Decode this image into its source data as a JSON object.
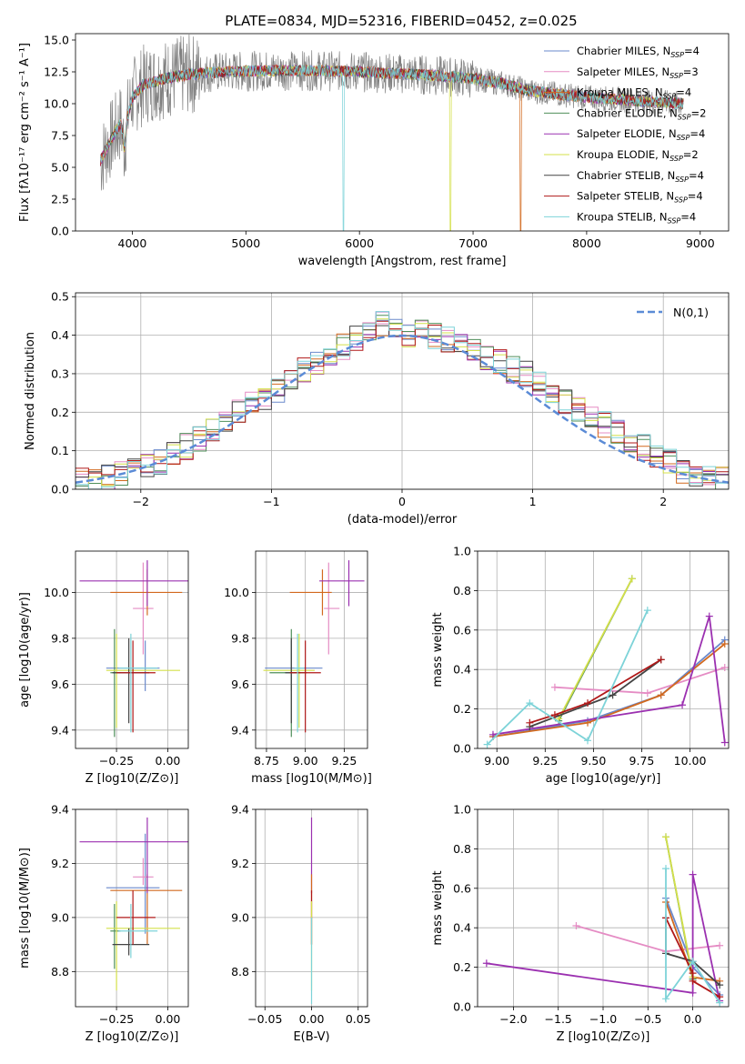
{
  "figure": {
    "title": "PLATE=0834, MJD=52316, FIBERID=0452, z=0.025"
  },
  "colors": {
    "Chabrier MILES": "#6a89cc",
    "Salpeter MILES": "#e58cc4",
    "Kroupa MILES": "#d2691e",
    "Chabrier ELODIE": "#4f8f5a",
    "Salpeter ELODIE": "#9b30b0",
    "Kroupa ELODIE": "#d4e04a",
    "Chabrier STELIB": "#444444",
    "Salpeter STELIB": "#b01818",
    "Kroupa STELIB": "#7dd3d8",
    "data": "#808080",
    "normal": "#5b8bd6"
  },
  "chart_data": [
    {
      "id": "spectrum",
      "type": "line",
      "xlabel": "wavelength [Angstrom, rest frame]",
      "ylabel": "Flux [fλ10⁻¹⁷ erg cm⁻² s⁻¹ A⁻¹]",
      "xlim": [
        3500,
        9250
      ],
      "ylim": [
        0,
        15.5
      ],
      "xticks": [
        4000,
        5000,
        6000,
        7000,
        8000,
        9000
      ],
      "yticks": [
        0.0,
        2.5,
        5.0,
        7.5,
        10.0,
        12.5,
        15.0
      ],
      "grid": false,
      "legend_position": "top-right",
      "legend": [
        "Chabrier MILES, N_SSP=4",
        "Salpeter MILES, N_SSP=3",
        "Kroupa MILES, N_SSP=4",
        "Chabrier ELODIE, N_SSP=2",
        "Salpeter ELODIE, N_SSP=4",
        "Kroupa ELODIE, N_SSP=2",
        "Chabrier STELIB, N_SSP=4",
        "Salpeter STELIB, N_SSP=4",
        "Kroupa STELIB, N_SSP=4"
      ],
      "continuum": {
        "wavelength": [
          3720,
          3800,
          3900,
          3930,
          3960,
          4000,
          4100,
          4300,
          4500,
          4800,
          5200,
          5600,
          6000,
          6500,
          7000,
          7300,
          7500,
          8000,
          8500,
          8850
        ],
        "flux": [
          5.5,
          7.0,
          8.5,
          6.5,
          9.0,
          10.5,
          11.5,
          12.0,
          12.3,
          12.5,
          12.6,
          12.6,
          12.5,
          12.3,
          12.0,
          11.5,
          11.0,
          10.5,
          10.2,
          10.0
        ]
      },
      "model_dropouts": [
        {
          "model": "Kroupa STELIB",
          "x": 5860
        },
        {
          "model": "Kroupa ELODIE",
          "x": 6800
        },
        {
          "model": "Kroupa MILES",
          "x": 7420
        }
      ]
    },
    {
      "id": "residuals",
      "type": "step",
      "xlabel": "(data-model)/error",
      "ylabel": "Normed distribution",
      "xlim": [
        -2.5,
        2.5
      ],
      "ylim": [
        0,
        0.51
      ],
      "xticks": [
        -2,
        -1,
        0,
        1,
        2
      ],
      "yticks": [
        0.0,
        0.1,
        0.2,
        0.3,
        0.4,
        0.5
      ],
      "grid": true,
      "legend_position": "top-right",
      "legend": [
        "N(0,1)"
      ],
      "bin_edges": [
        -2.5,
        -2.4,
        -2.3,
        -2.2,
        -2.1,
        -2.0,
        -1.9,
        -1.8,
        -1.7,
        -1.6,
        -1.5,
        -1.4,
        -1.3,
        -1.2,
        -1.1,
        -1.0,
        -0.9,
        -0.8,
        -0.7,
        -0.6,
        -0.5,
        -0.4,
        -0.3,
        -0.2,
        -0.1,
        0.0,
        0.1,
        0.2,
        0.3,
        0.4,
        0.5,
        0.6,
        0.7,
        0.8,
        0.9,
        1.0,
        1.1,
        1.2,
        1.3,
        1.4,
        1.5,
        1.6,
        1.7,
        1.8,
        1.9,
        2.0,
        2.1,
        2.2,
        2.3,
        2.4,
        2.5
      ],
      "density_approx": [
        0.02,
        0.02,
        0.03,
        0.04,
        0.05,
        0.06,
        0.07,
        0.09,
        0.11,
        0.13,
        0.15,
        0.17,
        0.2,
        0.22,
        0.24,
        0.26,
        0.28,
        0.31,
        0.33,
        0.35,
        0.37,
        0.39,
        0.4,
        0.43,
        0.42,
        0.4,
        0.41,
        0.4,
        0.39,
        0.38,
        0.36,
        0.34,
        0.33,
        0.31,
        0.3,
        0.28,
        0.26,
        0.23,
        0.21,
        0.19,
        0.17,
        0.15,
        0.13,
        0.11,
        0.09,
        0.07,
        0.05,
        0.04,
        0.03,
        0.03
      ],
      "normal_curve": {
        "mu": 0,
        "sigma": 1
      }
    },
    {
      "id": "age_vs_Z",
      "type": "errorbar",
      "xlabel": "Z [log10(Z/Z⊙)]",
      "ylabel": "age [log10(age/yr)]",
      "xlim": [
        -0.45,
        0.1
      ],
      "ylim": [
        9.32,
        10.18
      ],
      "xticks": [
        -0.25,
        0.0
      ],
      "yticks": [
        9.4,
        9.6,
        9.8,
        10.0
      ],
      "grid": true,
      "points": [
        {
          "model": "Chabrier MILES",
          "x": -0.11,
          "y": 9.67,
          "xerr": [
            0.19,
            0.07
          ],
          "yerr": [
            0.1,
            0.12
          ]
        },
        {
          "model": "Salpeter MILES",
          "x": -0.12,
          "y": 9.93,
          "xerr": [
            0.05,
            0.05
          ],
          "yerr": [
            0.2,
            0.2
          ]
        },
        {
          "model": "Kroupa MILES",
          "x": -0.1,
          "y": 10.0,
          "xerr": [
            0.18,
            0.17
          ],
          "yerr": [
            0.1,
            0.1
          ]
        },
        {
          "model": "Chabrier ELODIE",
          "x": -0.26,
          "y": 9.65,
          "xerr": [
            0.02,
            0.03
          ],
          "yerr": [
            0.28,
            0.19
          ]
        },
        {
          "model": "Salpeter ELODIE",
          "x": -0.1,
          "y": 10.05,
          "xerr": [
            0.33,
            0.2
          ],
          "yerr": [
            0.11,
            0.09
          ]
        },
        {
          "model": "Kroupa ELODIE",
          "x": -0.25,
          "y": 9.66,
          "xerr": [
            0.05,
            0.31
          ],
          "yerr": [
            0.25,
            0.16
          ]
        },
        {
          "model": "Chabrier STELIB",
          "x": -0.19,
          "y": 9.65,
          "xerr": [
            0.08,
            0.1
          ],
          "yerr": [
            0.22,
            0.15
          ]
        },
        {
          "model": "Salpeter STELIB",
          "x": -0.17,
          "y": 9.65,
          "xerr": [
            0.08,
            0.11
          ],
          "yerr": [
            0.26,
            0.14
          ]
        },
        {
          "model": "Kroupa STELIB",
          "x": -0.18,
          "y": 9.67,
          "xerr": [
            0.06,
            0.13
          ],
          "yerr": [
            0.28,
            0.15
          ]
        }
      ]
    },
    {
      "id": "age_vs_mass",
      "type": "errorbar",
      "xlabel": "mass [log10(M/M⊙)]",
      "ylabel": "",
      "xlim": [
        8.68,
        9.4
      ],
      "ylim": [
        9.32,
        10.18
      ],
      "xticks": [
        8.75,
        9.0,
        9.25
      ],
      "yticks": [
        9.4,
        9.6,
        9.8,
        10.0
      ],
      "grid": true,
      "points": [
        {
          "model": "Chabrier MILES",
          "x": 8.91,
          "y": 9.67,
          "xerr": [
            0.17,
            0.2
          ],
          "yerr": [
            0.1,
            0.12
          ]
        },
        {
          "model": "Salpeter MILES",
          "x": 9.15,
          "y": 9.93,
          "xerr": [
            0.03,
            0.07
          ],
          "yerr": [
            0.2,
            0.2
          ]
        },
        {
          "model": "Kroupa MILES",
          "x": 9.11,
          "y": 10.0,
          "xerr": [
            0.21,
            0.06
          ],
          "yerr": [
            0.1,
            0.1
          ]
        },
        {
          "model": "Chabrier ELODIE",
          "x": 8.91,
          "y": 9.65,
          "xerr": [
            0.14,
            0.1
          ],
          "yerr": [
            0.28,
            0.19
          ]
        },
        {
          "model": "Salpeter ELODIE",
          "x": 9.28,
          "y": 10.05,
          "xerr": [
            0.19,
            0.1
          ],
          "yerr": [
            0.11,
            0.09
          ]
        },
        {
          "model": "Kroupa ELODIE",
          "x": 8.96,
          "y": 9.66,
          "xerr": [
            0.23,
            0.1
          ],
          "yerr": [
            0.25,
            0.16
          ]
        },
        {
          "model": "Chabrier STELIB",
          "x": 8.91,
          "y": 9.65,
          "xerr": [
            0.04,
            0.06
          ],
          "yerr": [
            0.22,
            0.15
          ]
        },
        {
          "model": "Salpeter STELIB",
          "x": 9.0,
          "y": 9.65,
          "xerr": [
            0.1,
            0.1
          ],
          "yerr": [
            0.26,
            0.14
          ]
        },
        {
          "model": "Kroupa STELIB",
          "x": 8.95,
          "y": 9.67,
          "xerr": [
            0.02,
            0.04
          ],
          "yerr": [
            0.28,
            0.15
          ]
        }
      ]
    },
    {
      "id": "massweight_vs_age",
      "type": "line",
      "xlabel": "age [log10(age/yr)]",
      "ylabel": "mass weight",
      "xlim": [
        8.9,
        10.2
      ],
      "ylim": [
        0.0,
        1.0
      ],
      "xticks": [
        9.0,
        9.25,
        9.5,
        9.75,
        10.0
      ],
      "yticks": [
        0.0,
        0.2,
        0.4,
        0.6,
        0.8,
        1.0
      ],
      "grid": true,
      "series": [
        {
          "name": "Chabrier MILES",
          "x": [
            8.98,
            9.47,
            9.85,
            10.18
          ],
          "y": [
            0.06,
            0.14,
            0.27,
            0.55
          ]
        },
        {
          "name": "Salpeter MILES",
          "x": [
            9.3,
            9.78,
            10.18
          ],
          "y": [
            0.31,
            0.28,
            0.41
          ]
        },
        {
          "name": "Kroupa MILES",
          "x": [
            8.98,
            9.47,
            9.85,
            10.18
          ],
          "y": [
            0.06,
            0.13,
            0.27,
            0.53
          ]
        },
        {
          "name": "Chabrier ELODIE",
          "x": [
            9.32,
            9.7
          ],
          "y": [
            0.14,
            0.86
          ]
        },
        {
          "name": "Salpeter ELODIE",
          "x": [
            8.98,
            9.96,
            10.1,
            10.18
          ],
          "y": [
            0.07,
            0.22,
            0.67,
            0.03
          ]
        },
        {
          "name": "Kroupa ELODIE",
          "x": [
            9.32,
            9.7
          ],
          "y": [
            0.15,
            0.86
          ]
        },
        {
          "name": "Chabrier STELIB",
          "x": [
            9.17,
            9.6,
            9.85
          ],
          "y": [
            0.11,
            0.27,
            0.45
          ]
        },
        {
          "name": "Salpeter STELIB",
          "x": [
            9.17,
            9.3,
            9.47,
            9.85
          ],
          "y": [
            0.13,
            0.17,
            0.23,
            0.45
          ]
        },
        {
          "name": "Kroupa STELIB",
          "x": [
            8.95,
            9.17,
            9.47,
            9.78
          ],
          "y": [
            0.02,
            0.23,
            0.04,
            0.7
          ]
        }
      ]
    },
    {
      "id": "mass_vs_Z",
      "type": "errorbar",
      "xlabel": "Z [log10(Z/Z⊙)]",
      "ylabel": "mass [log10(M/M⊙)]",
      "xlim": [
        -0.45,
        0.1
      ],
      "ylim": [
        8.67,
        9.4
      ],
      "xticks": [
        -0.25,
        0.0
      ],
      "yticks": [
        8.8,
        9.0,
        9.2,
        9.4
      ],
      "grid": true,
      "points": [
        {
          "model": "Chabrier MILES",
          "x": -0.11,
          "y": 9.11,
          "xerr": [
            0.19,
            0.07
          ],
          "yerr": [
            0.17,
            0.2
          ]
        },
        {
          "model": "Salpeter MILES",
          "x": -0.12,
          "y": 9.15,
          "xerr": [
            0.05,
            0.05
          ],
          "yerr": [
            0.03,
            0.07
          ]
        },
        {
          "model": "Kroupa MILES",
          "x": -0.1,
          "y": 9.1,
          "xerr": [
            0.18,
            0.17
          ],
          "yerr": [
            0.2,
            0.06
          ]
        },
        {
          "model": "Chabrier ELODIE",
          "x": -0.26,
          "y": 8.95,
          "xerr": [
            0.02,
            0.03
          ],
          "yerr": [
            0.14,
            0.1
          ]
        },
        {
          "model": "Salpeter ELODIE",
          "x": -0.1,
          "y": 9.28,
          "xerr": [
            0.33,
            0.2
          ],
          "yerr": [
            0.19,
            0.09
          ]
        },
        {
          "model": "Kroupa ELODIE",
          "x": -0.25,
          "y": 8.96,
          "xerr": [
            0.05,
            0.31
          ],
          "yerr": [
            0.23,
            0.1
          ]
        },
        {
          "model": "Chabrier STELIB",
          "x": -0.19,
          "y": 8.9,
          "xerr": [
            0.08,
            0.1
          ],
          "yerr": [
            0.04,
            0.06
          ]
        },
        {
          "model": "Salpeter STELIB",
          "x": -0.17,
          "y": 9.0,
          "xerr": [
            0.08,
            0.11
          ],
          "yerr": [
            0.1,
            0.1
          ]
        },
        {
          "model": "Kroupa STELIB",
          "x": -0.18,
          "y": 8.95,
          "xerr": [
            0.06,
            0.13
          ],
          "yerr": [
            0.1,
            0.1
          ]
        }
      ]
    },
    {
      "id": "mass_vs_ebv",
      "type": "errorbar",
      "xlabel": "E(B-V)",
      "ylabel": "",
      "xlim": [
        -0.06,
        0.06
      ],
      "ylim": [
        8.67,
        9.4
      ],
      "xticks": [
        -0.05,
        0.0,
        0.05
      ],
      "yticks": [
        8.8,
        9.0,
        9.2,
        9.4
      ],
      "grid": true,
      "points": [
        {
          "model": "Salpeter ELODIE",
          "x": 0.0,
          "y": 9.28,
          "xerr": [
            0,
            0
          ],
          "yerr": [
            0.19,
            0.09
          ]
        },
        {
          "model": "Kroupa MILES",
          "x": 0.0,
          "y": 9.1,
          "xerr": [
            0,
            0
          ],
          "yerr": [
            0.2,
            0.06
          ]
        },
        {
          "model": "Salpeter STELIB",
          "x": 0.0,
          "y": 9.0,
          "xerr": [
            0,
            0
          ],
          "yerr": [
            0.1,
            0.1
          ]
        },
        {
          "model": "Kroupa ELODIE",
          "x": 0.0,
          "y": 8.96,
          "xerr": [
            0,
            0
          ],
          "yerr": [
            0.23,
            0.1
          ]
        },
        {
          "model": "Kroupa STELIB",
          "x": 0.0,
          "y": 8.95,
          "xerr": [
            0,
            0
          ],
          "yerr": [
            0.27,
            0.05
          ]
        }
      ]
    },
    {
      "id": "massweight_vs_Z",
      "type": "line",
      "xlabel": "Z [log10(Z/Z⊙)]",
      "ylabel": "mass weight",
      "xlim": [
        -2.4,
        0.4
      ],
      "ylim": [
        0.0,
        1.0
      ],
      "xticks": [
        -2.0,
        -1.5,
        -1.0,
        -0.5,
        0.0
      ],
      "yticks": [
        0.0,
        0.2,
        0.4,
        0.6,
        0.8,
        1.0
      ],
      "grid": true,
      "series": [
        {
          "name": "Chabrier MILES",
          "x": [
            -0.3,
            0.0,
            0.3
          ],
          "y": [
            0.55,
            0.2,
            0.06
          ]
        },
        {
          "name": "Salpeter MILES",
          "x": [
            -1.3,
            -0.3,
            0.3
          ],
          "y": [
            0.41,
            0.28,
            0.31
          ]
        },
        {
          "name": "Kroupa MILES",
          "x": [
            -0.3,
            0.0,
            0.3
          ],
          "y": [
            0.53,
            0.15,
            0.13
          ]
        },
        {
          "name": "Chabrier ELODIE",
          "x": [
            -0.3,
            0.0
          ],
          "y": [
            0.86,
            0.14
          ]
        },
        {
          "name": "Salpeter ELODIE",
          "x": [
            -2.3,
            0.0,
            0.0,
            0.3
          ],
          "y": [
            0.22,
            0.07,
            0.67,
            0.03
          ]
        },
        {
          "name": "Kroupa ELODIE",
          "x": [
            -0.3,
            0.0
          ],
          "y": [
            0.86,
            0.15
          ]
        },
        {
          "name": "Chabrier STELIB",
          "x": [
            -0.3,
            -0.3,
            0.0,
            0.3
          ],
          "y": [
            0.45,
            0.27,
            0.23,
            0.11
          ]
        },
        {
          "name": "Salpeter STELIB",
          "x": [
            -0.3,
            0.0,
            0.0,
            0.3
          ],
          "y": [
            0.45,
            0.17,
            0.13,
            0.05
          ]
        },
        {
          "name": "Kroupa STELIB",
          "x": [
            -0.3,
            -0.3,
            0.0,
            0.3
          ],
          "y": [
            0.7,
            0.04,
            0.23,
            0.02
          ]
        }
      ]
    }
  ]
}
